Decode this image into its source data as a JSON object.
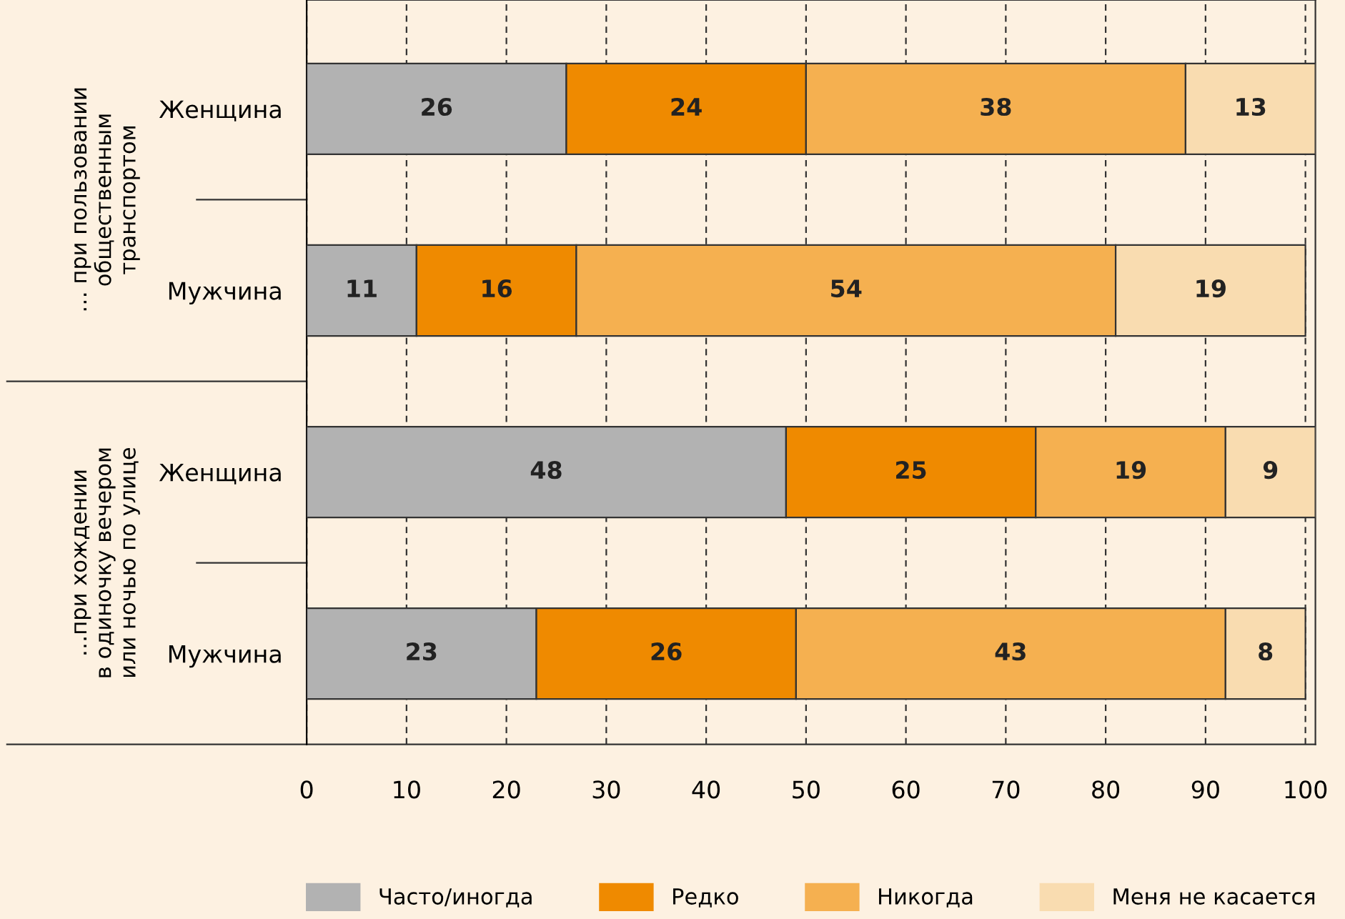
{
  "chart_data": {
    "type": "bar",
    "orientation": "horizontal",
    "stacked": true,
    "categories": [
      "Женщина",
      "Мужчина",
      "Женщина",
      "Мужчина"
    ],
    "series": [
      {
        "name": "Часто/иногда",
        "color": "#b2b2b2",
        "values": [
          26,
          11,
          48,
          23
        ]
      },
      {
        "name": "Редко",
        "color": "#ef8a00",
        "values": [
          24,
          16,
          25,
          26
        ]
      },
      {
        "name": "Никогда",
        "color": "#f5b050",
        "values": [
          38,
          54,
          19,
          43
        ]
      },
      {
        "name": "Меня не касается",
        "color": "#f9dcb0",
        "values": [
          13,
          19,
          9,
          8
        ]
      }
    ],
    "annotations": [
      "… при пользовании\nобщественным\nтранспортом",
      "…при хождении\nв одиночку вечером\nили ночью по улице"
    ],
    "xlim": [
      0,
      101
    ],
    "xticks": [
      0,
      10,
      20,
      30,
      40,
      50,
      60,
      70,
      80,
      90,
      100
    ],
    "grid": "x",
    "legend": "bottom",
    "data_labels": true
  }
}
